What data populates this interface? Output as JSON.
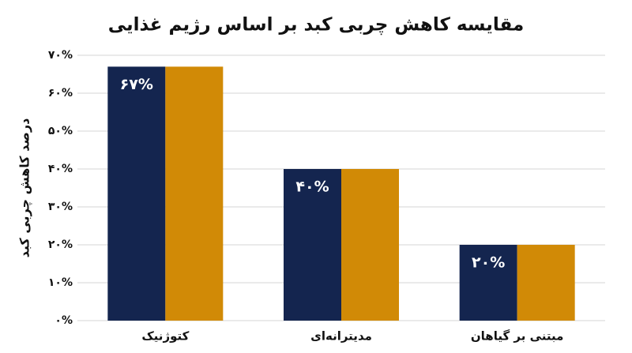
{
  "chart_data": {
    "type": "bar",
    "title": "مقایسه کاهش چربی کبد بر اساس رژیم غذایی",
    "y_label": "درصد کاهش چربی کبد",
    "categories": [
      "کتوژنیک",
      "مدیترانه‌ای",
      "مبتنی بر گیاهان"
    ],
    "series": [
      {
        "color": "#14254f",
        "values": [
          67,
          40,
          20
        ],
        "value_labels": [
          "۶۷%",
          "۴۰%",
          "۲۰%"
        ]
      },
      {
        "color": "#d18a06",
        "values": [
          67,
          40,
          20
        ]
      }
    ],
    "ylim": [
      0,
      70
    ],
    "yticks": [
      {
        "value": 0,
        "label": "۰%"
      },
      {
        "value": 10,
        "label": "۱۰%"
      },
      {
        "value": 20,
        "label": "۲۰%"
      },
      {
        "value": 30,
        "label": "۳۰%"
      },
      {
        "value": 40,
        "label": "۴۰%"
      },
      {
        "value": 50,
        "label": "۵۰%"
      },
      {
        "value": 60,
        "label": "۶۰%"
      },
      {
        "value": 70,
        "label": "۷۰%"
      }
    ],
    "grid": true
  }
}
